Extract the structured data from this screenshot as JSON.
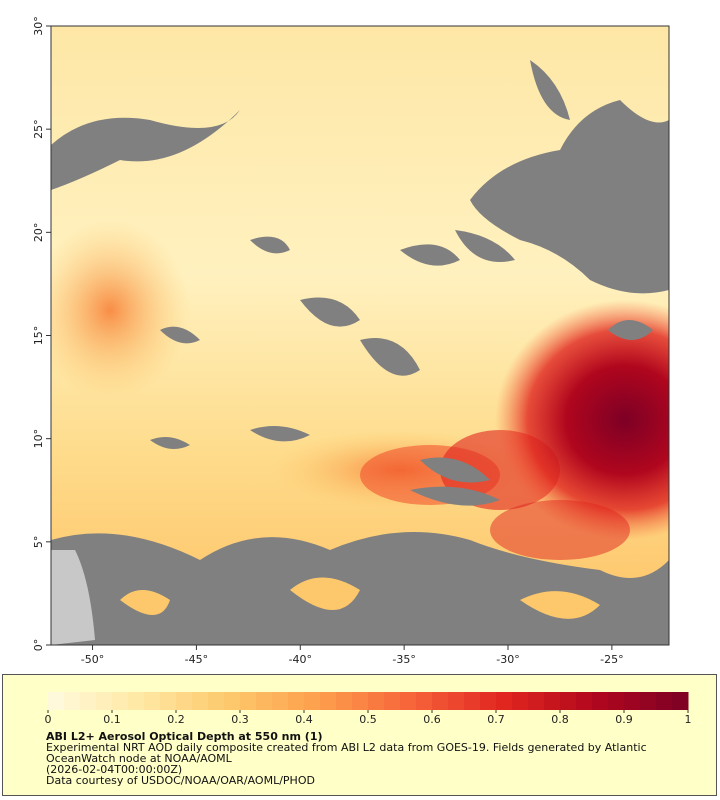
{
  "map": {
    "xlim": [
      -52,
      -22.25
    ],
    "ylim": [
      0,
      30
    ],
    "xticks": [
      {
        "value": -50,
        "label": "-50°"
      },
      {
        "value": -45,
        "label": "-45°"
      },
      {
        "value": -40,
        "label": "-40°"
      },
      {
        "value": -35,
        "label": "-35°"
      },
      {
        "value": -30,
        "label": "-30°"
      },
      {
        "value": -25,
        "label": "-25°"
      }
    ],
    "yticks": [
      {
        "value": 0,
        "label": "0°"
      },
      {
        "value": 5,
        "label": "5°"
      },
      {
        "value": 10,
        "label": "10°"
      },
      {
        "value": 15,
        "label": "15°"
      },
      {
        "value": 20,
        "label": "20°"
      },
      {
        "value": 25,
        "label": "25°"
      },
      {
        "value": 30,
        "label": "30°"
      }
    ]
  },
  "legend": {
    "range": [
      0,
      1
    ],
    "ticks": [
      0,
      0.1,
      0.2,
      0.3,
      0.4,
      0.5,
      0.6,
      0.7,
      0.8,
      0.9,
      1
    ],
    "colors": [
      "#fffbe0",
      "#fee8a4",
      "#fdc86b",
      "#fd9d4b",
      "#f7623a",
      "#e0251f",
      "#b0061e",
      "#7d0025"
    ]
  },
  "caption": {
    "title": "ABI L2+ Aerosol Optical Depth at 550 nm (1)",
    "description": "Experimental NRT AOD daily composite created from ABI L2 data from GOES-19. Fields generated by Atlantic OceanWatch node at NOAA/AOML",
    "time": "(2026-02-04T00:00:00Z)",
    "credit": "Data courtesy of USDOC/NOAA/OAR/AOML/PHOD"
  }
}
